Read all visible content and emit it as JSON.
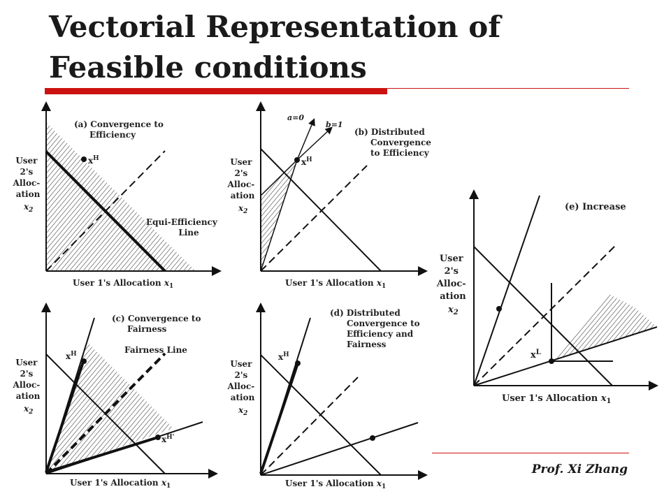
{
  "slide": {
    "title_line1": "Vectorial Representation of",
    "title_line2": "Feasible conditions",
    "footer": "Prof. Xi Zhang"
  },
  "ylabel": [
    "User",
    "2's",
    "Alloc-",
    "ation"
  ],
  "ylabel_var": "x",
  "ylabel_sub": "2",
  "xlabel": "User 1's Allocation ",
  "xlabel_var": "x",
  "xlabel_sub": "1",
  "panels": {
    "a": {
      "caption": [
        "(a)  Convergence to",
        "Efficiency"
      ],
      "annotation": [
        "Equi-Efficiency",
        "Line"
      ],
      "point": "x",
      "point_sup": "H"
    },
    "b": {
      "caption": [
        "(b)  Distributed",
        "Convergence",
        "to Efficiency"
      ],
      "vec_a": "a=0",
      "vec_b": "b=1",
      "point": "x",
      "point_sup": "H"
    },
    "c": {
      "caption": [
        "(c)  Convergence to",
        "Fairness"
      ],
      "annotation": "Fairness Line",
      "point1": "x",
      "point1_sup": "H",
      "point2": "x",
      "point2_sup": "H'"
    },
    "d": {
      "caption": [
        "(d)  Distributed",
        "Convergence to",
        "Efficiency and",
        "Fairness"
      ],
      "point": "x",
      "point_sup": "H"
    },
    "e": {
      "caption": "(e)  Increase",
      "point": "x",
      "point_sup": "L"
    }
  }
}
